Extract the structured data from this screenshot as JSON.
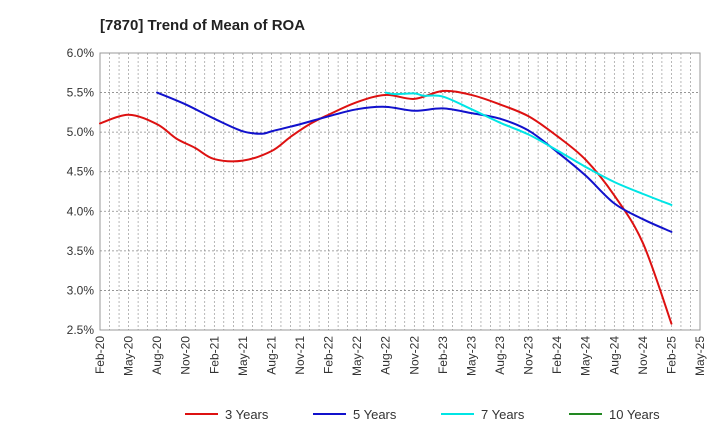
{
  "chart_data": {
    "type": "line",
    "title": "[7870]  Trend of Mean of ROA",
    "xlabel": "",
    "ylabel": "",
    "ylim": [
      2.5,
      6.0
    ],
    "y_ticks": [
      "6.0%",
      "5.5%",
      "5.0%",
      "4.5%",
      "4.0%",
      "3.5%",
      "3.0%",
      "2.5%"
    ],
    "y_tick_values": [
      6.0,
      5.5,
      5.0,
      4.5,
      4.0,
      3.5,
      3.0,
      2.5
    ],
    "x_ticks": [
      "Feb-20",
      "May-20",
      "Aug-20",
      "Nov-20",
      "Feb-21",
      "May-21",
      "Aug-21",
      "Nov-21",
      "Feb-22",
      "May-22",
      "Aug-22",
      "Nov-22",
      "Feb-23",
      "May-23",
      "Aug-23",
      "Nov-23",
      "Feb-24",
      "May-24",
      "Aug-24",
      "Nov-24",
      "Feb-25",
      "May-25"
    ],
    "x_range_months": [
      0,
      63
    ],
    "grid": true,
    "legend_position": "bottom",
    "series": [
      {
        "name": "3 Years",
        "color": "#dd1111",
        "x": [
          0,
          3,
          6,
          8,
          10,
          12,
          15,
          18,
          20,
          22,
          24,
          27,
          30,
          33,
          36,
          39,
          42,
          45,
          48,
          51,
          54,
          57,
          60
        ],
        "values": [
          5.11,
          5.22,
          5.1,
          4.92,
          4.8,
          4.66,
          4.64,
          4.76,
          4.94,
          5.1,
          5.22,
          5.38,
          5.47,
          5.42,
          5.52,
          5.47,
          5.35,
          5.2,
          4.95,
          4.65,
          4.2,
          3.6,
          2.58
        ]
      },
      {
        "name": "5 Years",
        "color": "#1111cc",
        "x": [
          6,
          9,
          12,
          15,
          17,
          18,
          21,
          24,
          27,
          30,
          33,
          36,
          39,
          42,
          45,
          48,
          51,
          54,
          57,
          60
        ],
        "values": [
          5.5,
          5.35,
          5.17,
          5.01,
          4.98,
          5.01,
          5.1,
          5.2,
          5.29,
          5.32,
          5.27,
          5.3,
          5.24,
          5.17,
          5.02,
          4.75,
          4.45,
          4.1,
          3.9,
          3.74
        ]
      },
      {
        "name": "7 Years",
        "color": "#00e5e5",
        "x": [
          30,
          31,
          33,
          34,
          36,
          39,
          42,
          45,
          48,
          51,
          54,
          57,
          60
        ],
        "values": [
          5.5,
          5.48,
          5.49,
          5.46,
          5.45,
          5.29,
          5.12,
          4.97,
          4.77,
          4.56,
          4.37,
          4.22,
          4.08
        ]
      },
      {
        "name": "10 Years",
        "color": "#228822",
        "x": [],
        "values": []
      }
    ]
  }
}
